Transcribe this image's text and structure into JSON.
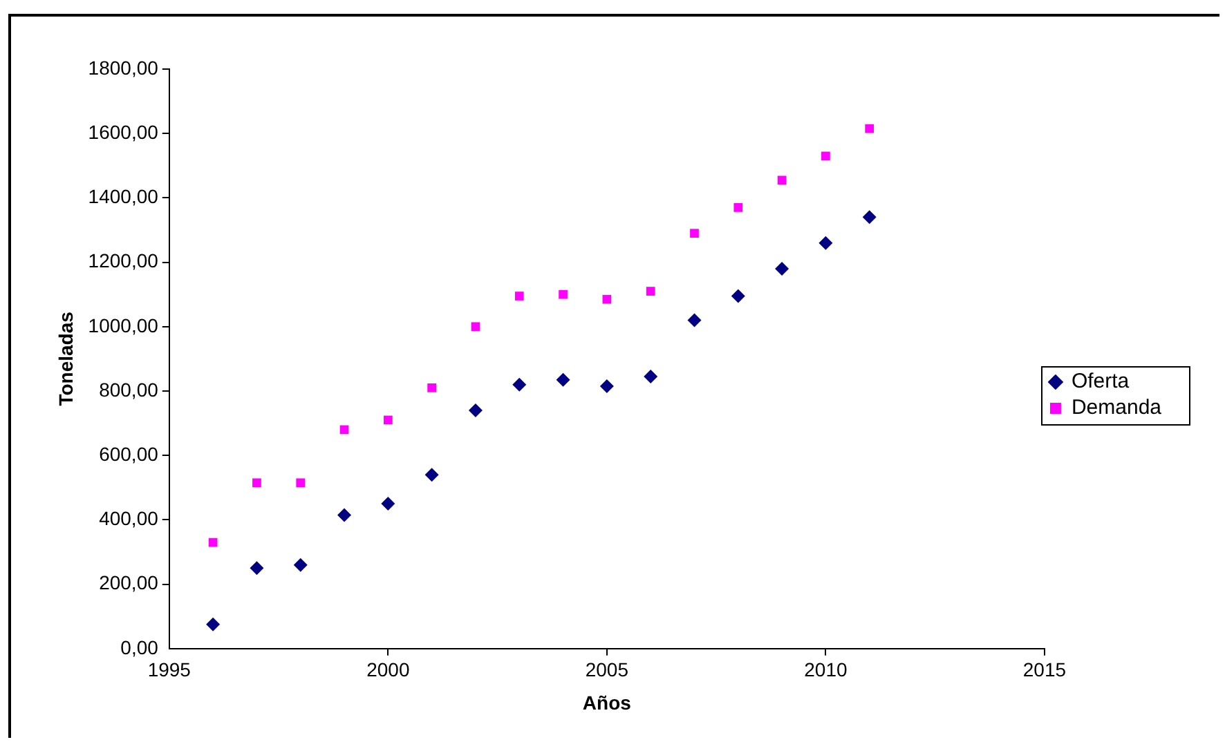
{
  "chart_data": {
    "type": "scatter",
    "xlabel": "Años",
    "ylabel": "Toneladas",
    "x": [
      1996,
      1997,
      1998,
      1999,
      2000,
      2001,
      2002,
      2003,
      2004,
      2005,
      2006,
      2007,
      2008,
      2009,
      2010,
      2011
    ],
    "series": [
      {
        "name": "Oferta",
        "color": "#000080",
        "marker": "diamond",
        "values": [
          75,
          250,
          260,
          415,
          450,
          540,
          740,
          820,
          835,
          815,
          845,
          1020,
          1095,
          1180,
          1260,
          1340
        ]
      },
      {
        "name": "Demanda",
        "color": "#ff00ff",
        "marker": "square",
        "values": [
          330,
          515,
          515,
          680,
          710,
          810,
          1000,
          1095,
          1100,
          1085,
          1110,
          1290,
          1370,
          1455,
          1530,
          1615
        ]
      }
    ],
    "xlim": [
      1995,
      2015
    ],
    "xticks": [
      1995,
      2000,
      2005,
      2010,
      2015
    ],
    "ylim": [
      0,
      1800
    ],
    "yticks": [
      {
        "value": 0,
        "label": "0,00"
      },
      {
        "value": 200,
        "label": "200,00"
      },
      {
        "value": 400,
        "label": "400,00"
      },
      {
        "value": 600,
        "label": "600,00"
      },
      {
        "value": 800,
        "label": "800,00"
      },
      {
        "value": 1000,
        "label": "1000,00"
      },
      {
        "value": 1200,
        "label": "1200,00"
      },
      {
        "value": 1400,
        "label": "1400,00"
      },
      {
        "value": 1600,
        "label": "1600,00"
      },
      {
        "value": 1800,
        "label": "1800,00"
      }
    ],
    "grid": false,
    "legend": "right"
  }
}
